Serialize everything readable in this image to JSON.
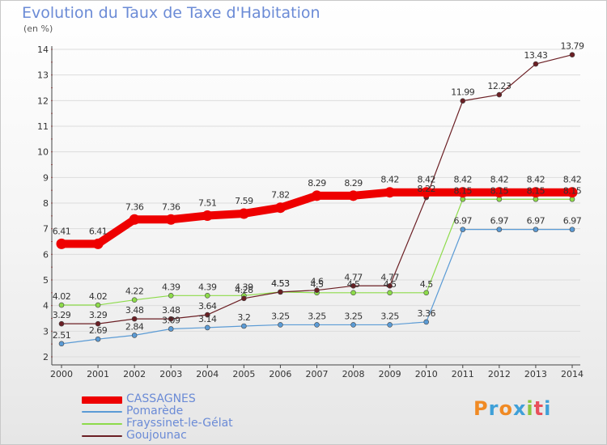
{
  "header": {
    "title": "Evolution du Taux de Taxe d'Habitation",
    "unit": "(en %)"
  },
  "branding": {
    "logo_text": "Proxiti",
    "logo_colors": [
      "#f08a24",
      "#3fa0d8",
      "#f08a24",
      "#3fa0d8",
      "#8cc63f",
      "#e8505b",
      "#3fa0d8"
    ]
  },
  "chart_data": {
    "type": "line",
    "title": "Evolution du Taux de Taxe d'Habitation",
    "ylabel": "(en %)",
    "xlabel": "",
    "x": [
      "2000",
      "2001",
      "2002",
      "2003",
      "2004",
      "2005",
      "2006",
      "2007",
      "2008",
      "2009",
      "2010",
      "2011",
      "2012",
      "2013",
      "2014"
    ],
    "ylim": [
      2,
      14
    ],
    "yticks": [
      "2",
      "3",
      "4",
      "5",
      "6",
      "7",
      "8",
      "9",
      "10",
      "11",
      "12",
      "13",
      "14"
    ],
    "grid": true,
    "legend_position": "bottom-left",
    "series": [
      {
        "name": "CASSAGNES",
        "color": "#ee0000",
        "values": [
          6.41,
          6.41,
          7.36,
          7.36,
          7.51,
          7.59,
          7.82,
          8.29,
          8.29,
          8.42,
          8.42,
          8.42,
          8.42,
          8.42,
          8.42
        ],
        "labels": [
          "6.41",
          "6.41",
          "7.36",
          "7.36",
          "7.51",
          "7.59",
          "7.82",
          "8.29",
          "8.29",
          "8.42",
          "8.42",
          "8.42",
          "8.42",
          "8.42",
          "8.42"
        ]
      },
      {
        "name": "Pomarède",
        "color": "#5b9bd5",
        "values": [
          2.51,
          2.69,
          2.84,
          3.09,
          3.14,
          3.2,
          3.25,
          3.25,
          3.25,
          3.25,
          3.36,
          6.97,
          6.97,
          6.97,
          6.97
        ],
        "labels": [
          "2.51",
          "2.69",
          "2.84",
          "3.09",
          "3.14",
          "3.2",
          "3.25",
          "3.25",
          "3.25",
          "3.25",
          "3.36",
          "6.97",
          "6.97",
          "6.97",
          "6.97"
        ]
      },
      {
        "name": "Frayssinet-le-Gélat",
        "color": "#8ddb4a",
        "values": [
          4.02,
          4.02,
          4.22,
          4.39,
          4.39,
          4.39,
          4.53,
          4.5,
          4.5,
          4.5,
          4.5,
          8.15,
          8.15,
          8.15,
          8.15
        ],
        "labels": [
          "4.02",
          "4.02",
          "4.22",
          "4.39",
          "4.39",
          "4.39",
          "4.53",
          "4.5",
          "4.5",
          "4.5",
          "4.5",
          "8.15",
          "8.15",
          "8.15",
          "8.15"
        ]
      },
      {
        "name": "Goujounac",
        "color": "#6b1f24",
        "values": [
          3.29,
          3.29,
          3.48,
          3.48,
          3.64,
          4.28,
          4.53,
          4.6,
          4.77,
          4.77,
          8.22,
          11.99,
          12.23,
          13.43,
          13.79
        ],
        "labels": [
          "3.29",
          "3.29",
          "3.48",
          "3.48",
          "3.64",
          "4.28",
          "4.53",
          "4.6",
          "4.77",
          "4.77",
          "8.22",
          "11.99",
          "12.23",
          "13.43",
          "13.79"
        ]
      }
    ]
  }
}
